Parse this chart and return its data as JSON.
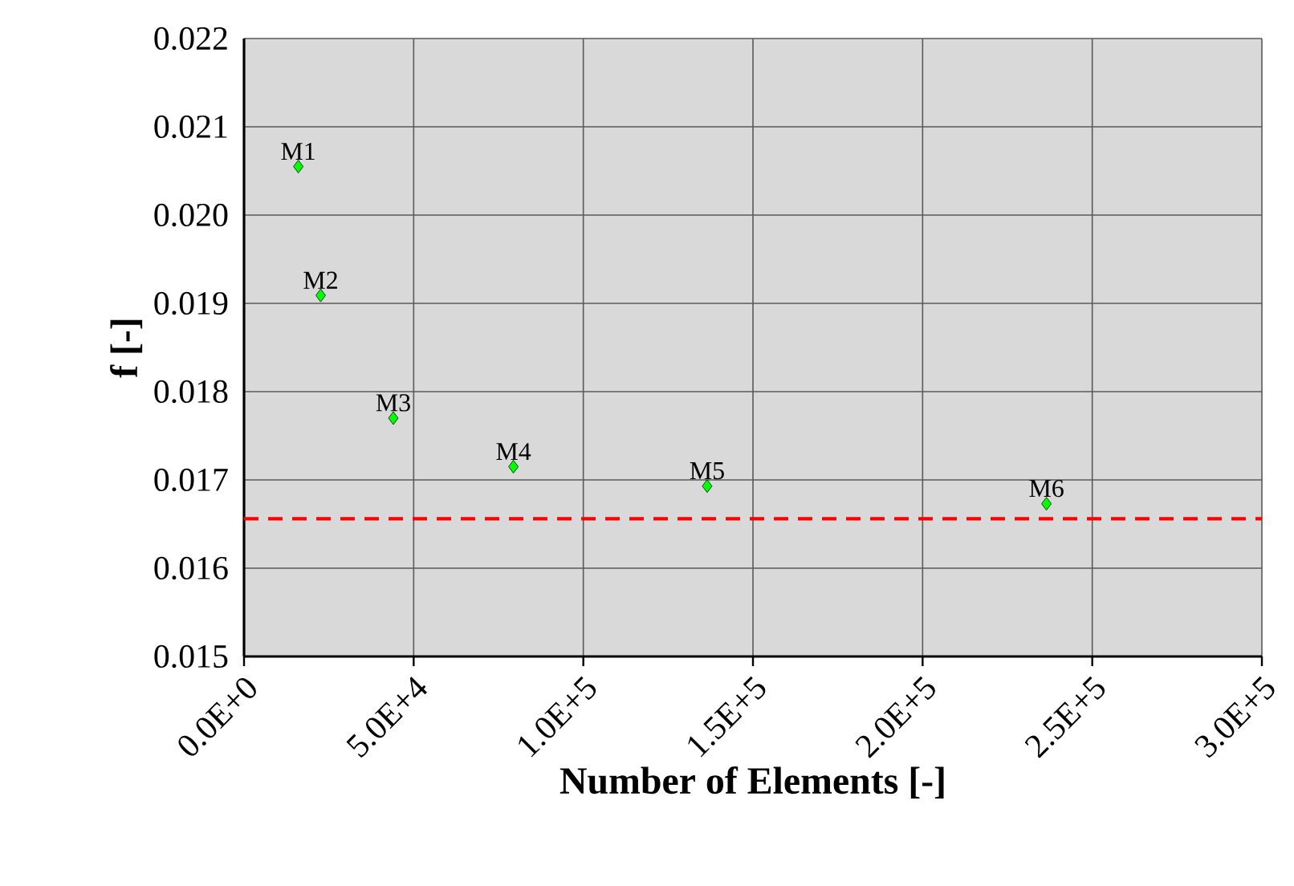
{
  "chart_data": {
    "type": "scatter",
    "xlabel": "Number of Elements [-]",
    "ylabel": "f [-]",
    "x": [
      16000,
      22600,
      44000,
      79400,
      136500,
      236500
    ],
    "values": [
      0.02055,
      0.01909,
      0.0177,
      0.01715,
      0.01693,
      0.01673
    ],
    "color": "#00ff00",
    "marker": "diamond",
    "xlim": [
      0,
      300000
    ],
    "xticks": [
      {
        "value": 0,
        "label": "0.0E+0"
      },
      {
        "value": 50000,
        "label": "5.0E+4"
      },
      {
        "value": 100000,
        "label": "1.0E+5"
      },
      {
        "value": 150000,
        "label": "1.5E+5"
      },
      {
        "value": 200000,
        "label": "2.0E+5"
      },
      {
        "value": 250000,
        "label": "2.5E+5"
      },
      {
        "value": 300000,
        "label": "3.0E+5"
      }
    ],
    "ylim": [
      0.015,
      0.022
    ],
    "yticks": [
      {
        "value": 0.015,
        "label": "0.015"
      },
      {
        "value": 0.016,
        "label": "0.016"
      },
      {
        "value": 0.017,
        "label": "0.017"
      },
      {
        "value": 0.018,
        "label": "0.018"
      },
      {
        "value": 0.019,
        "label": "0.019"
      },
      {
        "value": 0.02,
        "label": "0.020"
      },
      {
        "value": 0.021,
        "label": "0.021"
      },
      {
        "value": 0.022,
        "label": "0.022"
      }
    ],
    "grid": true,
    "ref_lines": [
      {
        "axis": "y",
        "value": 0.01656,
        "color": "#ff0000",
        "line_style": "dashed"
      }
    ],
    "annotations": [
      {
        "text": "M1",
        "x": 16000,
        "y": 0.02055
      },
      {
        "text": "M2",
        "x": 22600,
        "y": 0.01909
      },
      {
        "text": "M3",
        "x": 44000,
        "y": 0.0177
      },
      {
        "text": "M4",
        "x": 79400,
        "y": 0.01715
      },
      {
        "text": "M5",
        "x": 136500,
        "y": 0.01693
      },
      {
        "text": "M6",
        "x": 236500,
        "y": 0.01673
      }
    ]
  }
}
